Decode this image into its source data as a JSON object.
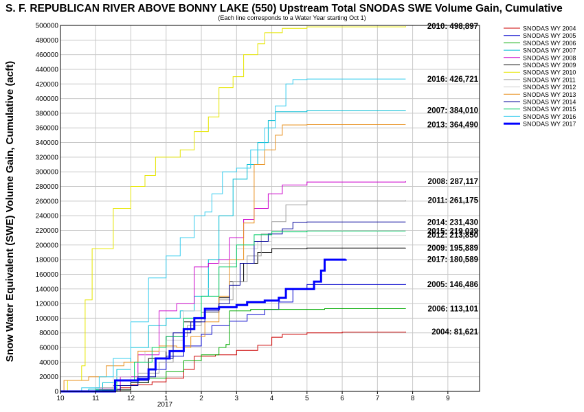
{
  "chart_data": {
    "type": "line",
    "title": "S. F. REPUBLICAN RIVER ABOVE BONNY LAKE (550) Upstream Total SNODAS SWE Volume Gain, Cumulative",
    "subtitle": "(Each line corresponds to a Water Year starting Oct 1)",
    "ylabel": "Snow Water Equivalent (SWE) Volume Gain, Cumulative (acft)",
    "xlabel": "",
    "x_ticks": [
      "10",
      "11",
      "12",
      "1",
      "2",
      "3",
      "4",
      "5",
      "6",
      "7",
      "8",
      "9"
    ],
    "x_sublabel": "2017",
    "ylim": [
      0,
      500000
    ],
    "xlim": [
      10,
      21.9
    ],
    "y_ticks": [
      "0",
      "20000",
      "40000",
      "60000",
      "80000",
      "100000",
      "120000",
      "140000",
      "160000",
      "180000",
      "200000",
      "220000",
      "240000",
      "260000",
      "280000",
      "300000",
      "320000",
      "340000",
      "360000",
      "380000",
      "400000",
      "420000",
      "440000",
      "460000",
      "480000",
      "500000"
    ],
    "grid": true,
    "legend_position": "top-right",
    "series": [
      {
        "name": "SNODAS WY 2004",
        "color": "#cc0000",
        "label": "2004: 81,621",
        "label_value": 81621,
        "points": [
          [
            10,
            0
          ],
          [
            11.2,
            0
          ],
          [
            11.7,
            5000
          ],
          [
            12,
            9000
          ],
          [
            12.6,
            13000
          ],
          [
            13,
            18000
          ],
          [
            13.5,
            30000
          ],
          [
            13.8,
            48000
          ],
          [
            14.4,
            50000
          ],
          [
            15,
            56000
          ],
          [
            15.6,
            63000
          ],
          [
            16,
            74000
          ],
          [
            16.3,
            78000
          ],
          [
            17,
            80000
          ],
          [
            18,
            81000
          ],
          [
            19.8,
            81621
          ]
        ]
      },
      {
        "name": "SNODAS WY 2005",
        "color": "#0000cc",
        "label": "2005: 146,486",
        "label_value": 146486,
        "points": [
          [
            10,
            0
          ],
          [
            11,
            2000
          ],
          [
            11.5,
            8000
          ],
          [
            12,
            15000
          ],
          [
            12.5,
            30000
          ],
          [
            13,
            48000
          ],
          [
            13.5,
            62000
          ],
          [
            14,
            78000
          ],
          [
            14.3,
            90000
          ],
          [
            14.8,
            96000
          ],
          [
            15.3,
            105000
          ],
          [
            15.8,
            112000
          ],
          [
            16.2,
            122000
          ],
          [
            16.6,
            140000
          ],
          [
            17,
            146000
          ],
          [
            18,
            146000
          ],
          [
            19.8,
            146486
          ]
        ]
      },
      {
        "name": "SNODAS WY 2006",
        "color": "#00aa00",
        "label": "2006: 113,101",
        "label_value": 113101,
        "points": [
          [
            10,
            0
          ],
          [
            11.5,
            2000
          ],
          [
            12,
            12000
          ],
          [
            12.5,
            18000
          ],
          [
            13,
            27000
          ],
          [
            13.5,
            42000
          ],
          [
            14,
            50000
          ],
          [
            14.5,
            60000
          ],
          [
            14.7,
            64000
          ],
          [
            14.8,
            110000
          ],
          [
            15.4,
            112000
          ],
          [
            16.5,
            112000
          ],
          [
            17.5,
            113000
          ],
          [
            19.8,
            113101
          ]
        ]
      },
      {
        "name": "SNODAS WY 2007",
        "color": "#00bcd4",
        "label": "2007: 384,010",
        "label_value": 384010,
        "points": [
          [
            10,
            0
          ],
          [
            10.8,
            3000
          ],
          [
            11.2,
            12000
          ],
          [
            11.6,
            30000
          ],
          [
            12,
            60000
          ],
          [
            12.5,
            90000
          ],
          [
            13,
            100000
          ],
          [
            13.4,
            110000
          ],
          [
            13.8,
            130000
          ],
          [
            14.2,
            180000
          ],
          [
            14.5,
            240000
          ],
          [
            14.9,
            290000
          ],
          [
            15.3,
            310000
          ],
          [
            15.6,
            340000
          ],
          [
            15.9,
            370000
          ],
          [
            16.1,
            382000
          ],
          [
            17,
            384000
          ],
          [
            19.8,
            384010
          ]
        ]
      },
      {
        "name": "SNODAS WY 2008",
        "color": "#cc00cc",
        "label": "2008: 287,117",
        "label_value": 287117,
        "points": [
          [
            10,
            0
          ],
          [
            11.1,
            3000
          ],
          [
            11.7,
            20000
          ],
          [
            12.2,
            50000
          ],
          [
            12.8,
            110000
          ],
          [
            13.3,
            120000
          ],
          [
            13.8,
            170000
          ],
          [
            14.2,
            175000
          ],
          [
            14.5,
            180000
          ],
          [
            14.8,
            210000
          ],
          [
            15.2,
            235000
          ],
          [
            15.5,
            250000
          ],
          [
            15.9,
            270000
          ],
          [
            16.3,
            282000
          ],
          [
            17,
            286000
          ],
          [
            19.8,
            287117
          ]
        ]
      },
      {
        "name": "SNODAS WY 2009",
        "color": "#000000",
        "label": "2009: 195,889",
        "label_value": 195889,
        "points": [
          [
            10,
            0
          ],
          [
            11.6,
            2000
          ],
          [
            12,
            12000
          ],
          [
            12.5,
            45000
          ],
          [
            13,
            75000
          ],
          [
            13.5,
            95000
          ],
          [
            14,
            108000
          ],
          [
            14.5,
            128000
          ],
          [
            14.8,
            150000
          ],
          [
            15.2,
            175000
          ],
          [
            15.6,
            190000
          ],
          [
            16,
            195000
          ],
          [
            17,
            195800
          ],
          [
            19.8,
            195889
          ]
        ]
      },
      {
        "name": "SNODAS WY 2010",
        "color": "#e6e600",
        "label": "2010: 498,897",
        "label_value": 498897,
        "points": [
          [
            10,
            0
          ],
          [
            10.2,
            15000
          ],
          [
            10.6,
            35000
          ],
          [
            10.7,
            125000
          ],
          [
            10.9,
            195000
          ],
          [
            11.5,
            250000
          ],
          [
            12,
            280000
          ],
          [
            12.4,
            295000
          ],
          [
            12.7,
            320000
          ],
          [
            13.4,
            330000
          ],
          [
            13.8,
            355000
          ],
          [
            14.2,
            375000
          ],
          [
            14.5,
            415000
          ],
          [
            14.9,
            430000
          ],
          [
            15.2,
            460000
          ],
          [
            15.6,
            475000
          ],
          [
            15.8,
            490000
          ],
          [
            16.3,
            496000
          ],
          [
            17,
            498000
          ],
          [
            19.8,
            498897
          ]
        ]
      },
      {
        "name": "SNODAS WY 2011",
        "color": "#9e9e9e",
        "label": "2011: 261,175",
        "label_value": 261175,
        "points": [
          [
            10,
            0
          ],
          [
            11,
            5000
          ],
          [
            11.6,
            15000
          ],
          [
            12.2,
            25000
          ],
          [
            12.8,
            40000
          ],
          [
            13.2,
            75000
          ],
          [
            13.6,
            90000
          ],
          [
            14,
            108000
          ],
          [
            14.5,
            125000
          ],
          [
            14.9,
            150000
          ],
          [
            15.3,
            185000
          ],
          [
            15.7,
            215000
          ],
          [
            16,
            232000
          ],
          [
            16.4,
            255000
          ],
          [
            17,
            260000
          ],
          [
            19.8,
            261175
          ]
        ]
      },
      {
        "name": "SNODAS WY 2012",
        "color": "#cfcfcf",
        "label": "2012: 213,850",
        "label_value": 213850,
        "points": [
          [
            10,
            0
          ],
          [
            11,
            2000
          ],
          [
            11.5,
            20000
          ],
          [
            12,
            40000
          ],
          [
            12.4,
            55000
          ],
          [
            13,
            70000
          ],
          [
            13.5,
            110000
          ],
          [
            14,
            140000
          ],
          [
            14.5,
            175000
          ],
          [
            15,
            195000
          ],
          [
            15.6,
            205000
          ],
          [
            16,
            210000
          ],
          [
            17,
            213000
          ],
          [
            19.8,
            213850
          ]
        ]
      },
      {
        "name": "SNODAS WY 2013",
        "color": "#e8901e",
        "label": "2013: 364,490",
        "label_value": 364490,
        "points": [
          [
            10,
            0
          ],
          [
            10.1,
            15000
          ],
          [
            10.8,
            20000
          ],
          [
            11.3,
            35000
          ],
          [
            11.8,
            40000
          ],
          [
            12.2,
            55000
          ],
          [
            12.8,
            62000
          ],
          [
            13.3,
            60000
          ],
          [
            13.7,
            75000
          ],
          [
            14.1,
            95000
          ],
          [
            14.5,
            130000
          ],
          [
            14.8,
            180000
          ],
          [
            15.2,
            230000
          ],
          [
            15.5,
            310000
          ],
          [
            15.8,
            330000
          ],
          [
            16.1,
            350000
          ],
          [
            16.3,
            364000
          ],
          [
            17,
            364400
          ],
          [
            19.8,
            364490
          ]
        ]
      },
      {
        "name": "SNODAS WY 2014",
        "color": "#000099",
        "label": "2014: 231,430",
        "label_value": 231430,
        "points": [
          [
            10,
            0
          ],
          [
            11.2,
            2000
          ],
          [
            11.7,
            8000
          ],
          [
            12.2,
            20000
          ],
          [
            12.7,
            45000
          ],
          [
            13.2,
            80000
          ],
          [
            13.7,
            95000
          ],
          [
            14.1,
            110000
          ],
          [
            14.5,
            120000
          ],
          [
            14.8,
            145000
          ],
          [
            15.1,
            175000
          ],
          [
            15.5,
            205000
          ],
          [
            15.9,
            215000
          ],
          [
            16.3,
            222000
          ],
          [
            16.6,
            231000
          ],
          [
            17,
            231400
          ],
          [
            19.8,
            231430
          ]
        ]
      },
      {
        "name": "SNODAS WY 2015",
        "color": "#00cc66",
        "label": "2015: 219,039",
        "label_value": 219039,
        "points": [
          [
            10,
            0
          ],
          [
            11,
            2000
          ],
          [
            11.6,
            15000
          ],
          [
            12.1,
            40000
          ],
          [
            12.6,
            60000
          ],
          [
            13,
            75000
          ],
          [
            13.5,
            100000
          ],
          [
            14,
            130000
          ],
          [
            14.5,
            170000
          ],
          [
            15,
            200000
          ],
          [
            15.5,
            214000
          ],
          [
            16,
            218000
          ],
          [
            17,
            219000
          ],
          [
            19.8,
            219039
          ]
        ]
      },
      {
        "name": "SNODAS WY 2016",
        "color": "#33ccee",
        "label": "2016: 426,721",
        "label_value": 426721,
        "points": [
          [
            10,
            0
          ],
          [
            10.6,
            5000
          ],
          [
            11.1,
            20000
          ],
          [
            11.5,
            45000
          ],
          [
            12,
            95000
          ],
          [
            12.5,
            155000
          ],
          [
            13,
            185000
          ],
          [
            13.4,
            210000
          ],
          [
            13.8,
            240000
          ],
          [
            14.1,
            245000
          ],
          [
            14.3,
            270000
          ],
          [
            14.6,
            300000
          ],
          [
            15,
            305000
          ],
          [
            15.4,
            330000
          ],
          [
            15.8,
            360000
          ],
          [
            16.1,
            390000
          ],
          [
            16.4,
            420000
          ],
          [
            16.6,
            426000
          ],
          [
            17,
            426700
          ],
          [
            19.8,
            426721
          ]
        ]
      },
      {
        "name": "SNODAS WY 2017",
        "color": "#0000ff",
        "label": "2017: 180,589",
        "label_value": 180589,
        "bold": true,
        "points": [
          [
            10,
            0
          ],
          [
            11.5,
            0
          ],
          [
            11.55,
            15000
          ],
          [
            12.2,
            17000
          ],
          [
            12.5,
            30000
          ],
          [
            12.7,
            45000
          ],
          [
            13.1,
            55000
          ],
          [
            13.5,
            85000
          ],
          [
            13.8,
            100000
          ],
          [
            14.1,
            113000
          ],
          [
            14.5,
            115000
          ],
          [
            15,
            118000
          ],
          [
            15.3,
            122000
          ],
          [
            15.8,
            124000
          ],
          [
            16.2,
            128000
          ],
          [
            16.4,
            140000
          ],
          [
            17.2,
            150000
          ],
          [
            17.4,
            165000
          ],
          [
            17.5,
            180000
          ],
          [
            18.1,
            180589
          ]
        ]
      }
    ]
  }
}
